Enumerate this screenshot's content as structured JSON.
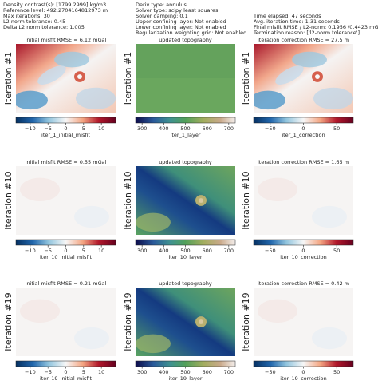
{
  "header": {
    "left": [
      "Density contrast(s): [1799 2999] kg/m3",
      "Reference level: 492.2704164812973 m",
      "Max iterations: 30",
      "L2 norm tolerance: 0.45",
      "Delta L2 norm tolerance: 1.005"
    ],
    "middle": [
      "Deriv type: annulus",
      "Solver type: scipy least squares",
      "Solver damping: 0.1",
      "Upper confining layer: Not enabled",
      "Lower confining layer: Not enabled",
      "Regularization weighting grid: Not enabled"
    ],
    "right": [
      "Time elapsed: 47 seconds",
      "Avg. iteration time: 1.31 seconds",
      "Final misfit RMSE / L2-norm: 0.1956 /0.4423 mGal",
      "Termination reason: ['l2-norm tolerance']"
    ]
  },
  "chart_data": [
    {
      "type": "heatmap",
      "title": "initial misfit RMSE = 6.12 mGal",
      "ylabel": "Iteration #1",
      "cmap": "RdBu_r",
      "colorbar_label": "iter_1_initial_misfit",
      "xlim": [
        -14,
        14
      ],
      "xticks": [
        {
          "value": -10,
          "label": "−10"
        },
        {
          "value": -5,
          "label": "−5"
        },
        0,
        5,
        10
      ]
    },
    {
      "type": "heatmap",
      "title": "updated topography",
      "ylabel": "Iteration #1",
      "cmap": "gist_earth",
      "colorbar_label": "iter_1_layer",
      "xlim": [
        270,
        730
      ],
      "xticks": [
        300,
        400,
        500,
        600,
        700
      ]
    },
    {
      "type": "heatmap",
      "title": "iteration correction RMSE = 27.5 m",
      "ylabel": "Iteration #1",
      "cmap": "RdBu_r",
      "colorbar_label": "iter_1_correction",
      "xlim": [
        -75,
        75
      ],
      "xticks": [
        {
          "value": -50,
          "label": "−50"
        },
        0,
        50
      ]
    },
    {
      "type": "heatmap",
      "title": "initial misfit RMSE = 0.55 mGal",
      "ylabel": "Iteration #10",
      "cmap": "RdBu_r",
      "colorbar_label": "iter_10_initial_misfit",
      "xlim": [
        -14,
        14
      ],
      "xticks": [
        {
          "value": -10,
          "label": "−10"
        },
        {
          "value": -5,
          "label": "−5"
        },
        0,
        5,
        10
      ]
    },
    {
      "type": "heatmap",
      "title": "updated topography",
      "ylabel": "Iteration #10",
      "cmap": "gist_earth",
      "colorbar_label": "iter_10_layer",
      "xlim": [
        270,
        730
      ],
      "xticks": [
        300,
        400,
        500,
        600,
        700
      ]
    },
    {
      "type": "heatmap",
      "title": "iteration correction RMSE = 1.65 m",
      "ylabel": "Iteration #10",
      "cmap": "RdBu_r",
      "colorbar_label": "iter_10_correction",
      "xlim": [
        -75,
        75
      ],
      "xticks": [
        {
          "value": -50,
          "label": "−50"
        },
        0,
        50
      ]
    },
    {
      "type": "heatmap",
      "title": "initial misfit RMSE = 0.21 mGal",
      "ylabel": "Iteration #19",
      "cmap": "RdBu_r",
      "colorbar_label": "iter_19_initial_misfit",
      "xlim": [
        -14,
        14
      ],
      "xticks": [
        {
          "value": -10,
          "label": "−10"
        },
        {
          "value": -5,
          "label": "−5"
        },
        0,
        5,
        10
      ]
    },
    {
      "type": "heatmap",
      "title": "updated topography",
      "ylabel": "Iteration #19",
      "cmap": "gist_earth",
      "colorbar_label": "iter_19_layer",
      "xlim": [
        270,
        730
      ],
      "xticks": [
        300,
        400,
        500,
        600,
        700
      ]
    },
    {
      "type": "heatmap",
      "title": "iteration correction RMSE = 0.42 m",
      "ylabel": "Iteration #19",
      "cmap": "RdBu_r",
      "colorbar_label": "iter_19_correction",
      "xlim": [
        -75,
        75
      ],
      "xticks": [
        {
          "value": -50,
          "label": "−50"
        },
        0,
        50
      ]
    }
  ]
}
